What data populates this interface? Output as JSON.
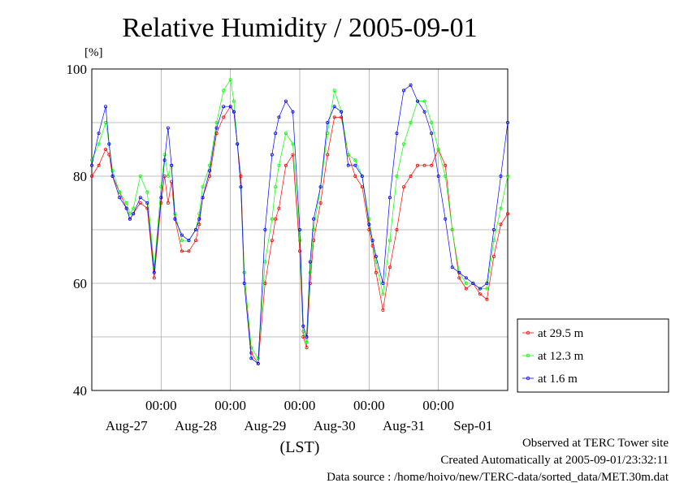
{
  "chart_data": {
    "type": "line",
    "title": "Relative Humidity / 2005-09-01",
    "ylabel": "[%]",
    "xlabel": "(LST)",
    "ylim": [
      40,
      100
    ],
    "xlim": [
      0,
      6
    ],
    "x_unit_note": "days from start of axis; 1 day per 00:00 gridline",
    "y_ticks": [
      "40",
      "60",
      "80",
      "100"
    ],
    "x_tick_time_labels": [
      "00:00",
      "00:00",
      "00:00",
      "00:00",
      "00:00"
    ],
    "x_tick_date_labels": [
      "Aug-27",
      "Aug-28",
      "Aug-29",
      "Aug-30",
      "Aug-31",
      "Sep-01"
    ],
    "grid": true,
    "legend_position": "right",
    "series": [
      {
        "name": "at 29.5 m",
        "color": "#ff0000",
        "x": [
          0,
          0.1,
          0.2,
          0.25,
          0.3,
          0.4,
          0.5,
          0.55,
          0.6,
          0.7,
          0.8,
          0.9,
          1.0,
          1.05,
          1.1,
          1.15,
          1.2,
          1.3,
          1.4,
          1.5,
          1.55,
          1.6,
          1.7,
          1.8,
          1.9,
          2.0,
          2.05,
          2.1,
          2.15,
          2.2,
          2.3,
          2.4,
          2.5,
          2.6,
          2.65,
          2.7,
          2.8,
          2.9,
          3.0,
          3.05,
          3.1,
          3.15,
          3.2,
          3.3,
          3.4,
          3.5,
          3.6,
          3.7,
          3.8,
          3.9,
          4.0,
          4.05,
          4.1,
          4.2,
          4.3,
          4.4,
          4.5,
          4.6,
          4.7,
          4.8,
          4.9,
          5.0,
          5.1,
          5.2,
          5.3,
          5.4,
          5.5,
          5.6,
          5.7,
          5.8,
          5.9,
          6.0
        ],
        "y": [
          80,
          82,
          85,
          84,
          80,
          77,
          74,
          72,
          73,
          75,
          74,
          61,
          75,
          80,
          75,
          79,
          72,
          66,
          66,
          68,
          71,
          76,
          80,
          88,
          91,
          93,
          92,
          86,
          80,
          62,
          47,
          45,
          60,
          68,
          72,
          74,
          82,
          84,
          66,
          50,
          48,
          60,
          68,
          75,
          84,
          91,
          91,
          84,
          80,
          78,
          70,
          67,
          62,
          55,
          63,
          70,
          78,
          80,
          82,
          82,
          82,
          85,
          82,
          70,
          61,
          59,
          60,
          58,
          57,
          65,
          71,
          73
        ]
      },
      {
        "name": "at 12.3 m",
        "color": "#00ff00",
        "x": [
          0,
          0.1,
          0.2,
          0.25,
          0.3,
          0.4,
          0.5,
          0.55,
          0.6,
          0.7,
          0.8,
          0.9,
          1.0,
          1.05,
          1.1,
          1.15,
          1.2,
          1.3,
          1.4,
          1.5,
          1.55,
          1.6,
          1.7,
          1.8,
          1.9,
          2.0,
          2.05,
          2.1,
          2.15,
          2.2,
          2.3,
          2.4,
          2.5,
          2.6,
          2.65,
          2.7,
          2.8,
          2.9,
          3.0,
          3.05,
          3.1,
          3.15,
          3.2,
          3.3,
          3.4,
          3.5,
          3.6,
          3.7,
          3.8,
          3.9,
          4.0,
          4.05,
          4.1,
          4.2,
          4.3,
          4.4,
          4.5,
          4.6,
          4.7,
          4.8,
          4.9,
          5.0,
          5.1,
          5.2,
          5.3,
          5.4,
          5.5,
          5.6,
          5.7,
          5.8,
          5.9,
          6.0
        ],
        "y": [
          83,
          86,
          90,
          86,
          81,
          77,
          75,
          73,
          74,
          80,
          77,
          63,
          78,
          84,
          80,
          82,
          73,
          68,
          68,
          70,
          73,
          78,
          82,
          90,
          96,
          98,
          94,
          86,
          78,
          62,
          48,
          46,
          64,
          72,
          78,
          82,
          88,
          86,
          68,
          51,
          49,
          62,
          70,
          78,
          88,
          96,
          92,
          84,
          83,
          80,
          72,
          68,
          64,
          58,
          68,
          80,
          86,
          90,
          94,
          94,
          90,
          85,
          80,
          70,
          62,
          60,
          60,
          59,
          59,
          68,
          74,
          80
        ]
      },
      {
        "name": "at 1.6 m",
        "color": "#0000ff",
        "x": [
          0,
          0.1,
          0.2,
          0.25,
          0.3,
          0.4,
          0.5,
          0.55,
          0.6,
          0.7,
          0.8,
          0.9,
          1.0,
          1.05,
          1.1,
          1.15,
          1.2,
          1.3,
          1.4,
          1.5,
          1.55,
          1.6,
          1.7,
          1.8,
          1.9,
          2.0,
          2.05,
          2.1,
          2.15,
          2.2,
          2.3,
          2.4,
          2.5,
          2.6,
          2.65,
          2.7,
          2.8,
          2.9,
          3.0,
          3.05,
          3.1,
          3.15,
          3.2,
          3.3,
          3.4,
          3.5,
          3.6,
          3.7,
          3.8,
          3.9,
          4.0,
          4.05,
          4.1,
          4.2,
          4.3,
          4.4,
          4.5,
          4.6,
          4.7,
          4.8,
          4.9,
          5.0,
          5.1,
          5.2,
          5.3,
          5.4,
          5.5,
          5.6,
          5.7,
          5.8,
          5.9,
          6.0
        ],
        "y": [
          82,
          88,
          93,
          86,
          80,
          76,
          74,
          72,
          73,
          76,
          75,
          62,
          76,
          83,
          89,
          82,
          72,
          69,
          68,
          70,
          72,
          76,
          81,
          89,
          93,
          93,
          92,
          86,
          78,
          60,
          46,
          45,
          70,
          84,
          88,
          91,
          94,
          92,
          70,
          52,
          50,
          64,
          72,
          78,
          90,
          93,
          92,
          82,
          82,
          80,
          71,
          68,
          65,
          60,
          76,
          88,
          96,
          97,
          94,
          92,
          88,
          80,
          72,
          63,
          62,
          61,
          60,
          59,
          60,
          70,
          80,
          90
        ]
      }
    ],
    "annotations": [
      "Observed at TERC Tower site",
      "Created Automatically at 2005-09-01/23:32:11",
      "Data source : /home/hoivo/new/TERC-data/sorted_data/MET.30m.dat"
    ]
  }
}
